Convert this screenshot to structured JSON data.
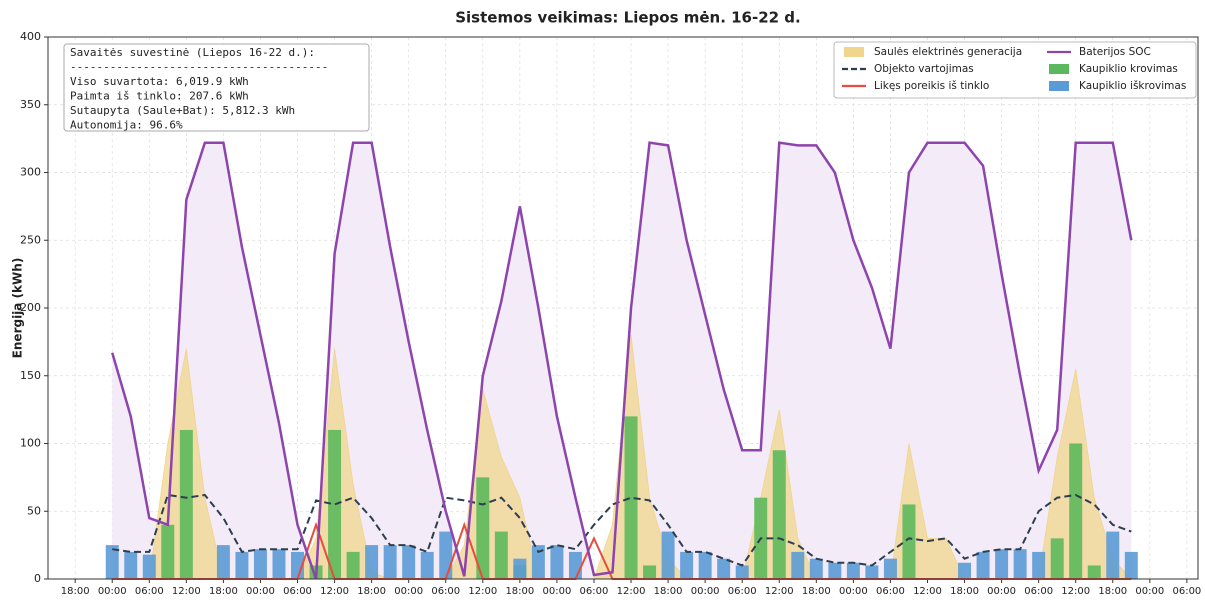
{
  "chart_data": {
    "type": "combo",
    "title": "Sistemos veikimas: Liepos mėn. 16-22 d.",
    "ylabel": "Energija (kWh)",
    "annotation": [
      "Savaitės suvestinė (Liepos 16-22 d.):",
      "---------------------------------------",
      "Viso suvartota: 6,019.9 kWh",
      "Paimta iš tinklo: 207.6 kWh",
      "Sutaupyta (Saule+Bat): 5,812.3 kWh",
      "Autonomija: 96.6%"
    ],
    "x": [
      0,
      3,
      6,
      9,
      12,
      15,
      18,
      21,
      24,
      27,
      30,
      33,
      36,
      39,
      42,
      45,
      48,
      51,
      54,
      57,
      60,
      63,
      66,
      69,
      72,
      75,
      78,
      81,
      84,
      87,
      90,
      93,
      96,
      99,
      102,
      105,
      108,
      111,
      114,
      117,
      120,
      123,
      126,
      129,
      132,
      135,
      138,
      141,
      144,
      147,
      150,
      153,
      156,
      159,
      162,
      165
    ],
    "xlim": [
      -10.4,
      175.8
    ],
    "xticks": [
      {
        "value": -6,
        "label": "18:00"
      },
      {
        "value": 0,
        "label": "00:00"
      },
      {
        "value": 6,
        "label": "06:00"
      },
      {
        "value": 12,
        "label": "12:00"
      },
      {
        "value": 18,
        "label": "18:00"
      },
      {
        "value": 24,
        "label": "00:00"
      },
      {
        "value": 30,
        "label": "06:00"
      },
      {
        "value": 36,
        "label": "12:00"
      },
      {
        "value": 42,
        "label": "18:00"
      },
      {
        "value": 48,
        "label": "00:00"
      },
      {
        "value": 54,
        "label": "06:00"
      },
      {
        "value": 60,
        "label": "12:00"
      },
      {
        "value": 66,
        "label": "18:00"
      },
      {
        "value": 72,
        "label": "00:00"
      },
      {
        "value": 78,
        "label": "06:00"
      },
      {
        "value": 84,
        "label": "12:00"
      },
      {
        "value": 90,
        "label": "18:00"
      },
      {
        "value": 96,
        "label": "00:00"
      },
      {
        "value": 102,
        "label": "06:00"
      },
      {
        "value": 108,
        "label": "12:00"
      },
      {
        "value": 114,
        "label": "18:00"
      },
      {
        "value": 120,
        "label": "00:00"
      },
      {
        "value": 126,
        "label": "06:00"
      },
      {
        "value": 132,
        "label": "12:00"
      },
      {
        "value": 138,
        "label": "18:00"
      },
      {
        "value": 144,
        "label": "00:00"
      },
      {
        "value": 150,
        "label": "06:00"
      },
      {
        "value": 156,
        "label": "12:00"
      },
      {
        "value": 162,
        "label": "18:00"
      },
      {
        "value": 168,
        "label": "00:00"
      },
      {
        "value": 174,
        "label": "06:00"
      }
    ],
    "ylim": [
      0,
      400
    ],
    "yticks": [
      0,
      50,
      100,
      150,
      200,
      250,
      300,
      350,
      400
    ],
    "grid": true,
    "legend": "upper right",
    "series": [
      {
        "name": "Saulės elektrinės generacija",
        "type": "area",
        "color": "#f0d58c",
        "values": [
          0,
          0,
          0,
          100,
          170,
          60,
          0,
          0,
          0,
          0,
          0,
          30,
          170,
          70,
          5,
          0,
          0,
          0,
          0,
          25,
          140,
          90,
          60,
          0,
          0,
          0,
          0,
          40,
          180,
          60,
          15,
          0,
          0,
          0,
          0,
          60,
          125,
          30,
          0,
          0,
          0,
          0,
          0,
          100,
          30,
          30,
          0,
          0,
          0,
          0,
          0,
          90,
          155,
          60,
          15,
          0
        ]
      },
      {
        "name": "Objekto vartojimas",
        "type": "line",
        "dash": true,
        "color": "#2c3e50",
        "values": [
          22,
          20,
          20,
          62,
          60,
          62,
          45,
          20,
          22,
          22,
          22,
          58,
          55,
          60,
          45,
          25,
          25,
          20,
          60,
          58,
          55,
          60,
          45,
          20,
          25,
          22,
          40,
          55,
          60,
          58,
          40,
          20,
          20,
          15,
          10,
          30,
          30,
          25,
          15,
          12,
          12,
          10,
          20,
          30,
          28,
          30,
          15,
          20,
          22,
          22,
          50,
          60,
          62,
          55,
          40,
          35
        ]
      },
      {
        "name": "Likęs poreikis iš tinklo",
        "type": "line",
        "color": "#e74c3c",
        "values": [
          0,
          0,
          0,
          0,
          0,
          0,
          0,
          0,
          0,
          0,
          0,
          40,
          0,
          0,
          0,
          0,
          0,
          0,
          0,
          40,
          0,
          0,
          0,
          0,
          0,
          0,
          30,
          0,
          0,
          0,
          0,
          0,
          0,
          0,
          0,
          0,
          0,
          0,
          0,
          0,
          0,
          0,
          0,
          0,
          0,
          0,
          0,
          0,
          0,
          0,
          0,
          0,
          0,
          0,
          0,
          0
        ]
      },
      {
        "name": "Baterijos SOC",
        "type": "line",
        "color": "#8e44ad",
        "fill_color": "#f4ebf8",
        "values": [
          167,
          120,
          45,
          40,
          280,
          322,
          322,
          245,
          180,
          115,
          40,
          0,
          240,
          322,
          322,
          245,
          175,
          110,
          50,
          2,
          150,
          205,
          275,
          200,
          120,
          60,
          3,
          5,
          200,
          322,
          320,
          250,
          195,
          140,
          95,
          95,
          322,
          320,
          320,
          300,
          250,
          215,
          170,
          300,
          322,
          322,
          322,
          305,
          225,
          150,
          80,
          110,
          322,
          322,
          322,
          250
        ]
      },
      {
        "name": "Kaupiklio krovimas",
        "type": "bar",
        "color": "#5cb85c",
        "values": [
          0,
          0,
          0,
          40,
          110,
          0,
          0,
          0,
          0,
          0,
          0,
          10,
          110,
          20,
          0,
          0,
          0,
          0,
          0,
          0,
          75,
          35,
          10,
          0,
          0,
          0,
          0,
          0,
          120,
          10,
          0,
          0,
          0,
          0,
          0,
          60,
          95,
          0,
          0,
          0,
          0,
          0,
          0,
          55,
          0,
          0,
          0,
          0,
          0,
          0,
          0,
          30,
          100,
          10,
          0,
          0
        ]
      },
      {
        "name": "Kaupiklio iškrovimas",
        "type": "bar",
        "color": "#5b9bd5",
        "values": [
          25,
          20,
          18,
          0,
          0,
          0,
          25,
          20,
          22,
          22,
          20,
          0,
          0,
          0,
          25,
          25,
          25,
          20,
          35,
          0,
          0,
          0,
          15,
          25,
          25,
          20,
          0,
          0,
          0,
          0,
          35,
          20,
          20,
          15,
          10,
          0,
          0,
          20,
          15,
          12,
          12,
          10,
          15,
          0,
          0,
          0,
          12,
          20,
          22,
          22,
          20,
          0,
          0,
          0,
          35,
          20
        ]
      }
    ]
  }
}
